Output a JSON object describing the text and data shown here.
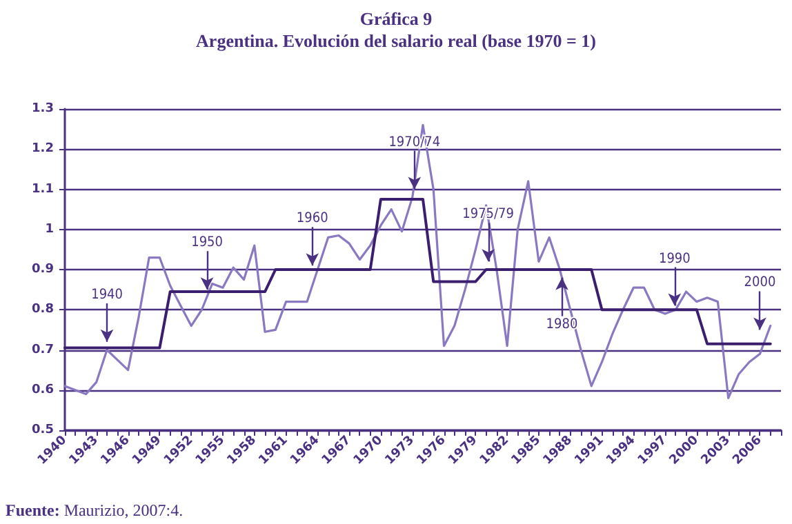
{
  "chart_data": {
    "type": "line",
    "title": "Gráfica 9",
    "subtitle": "Argentina. Evolución del salario real (base 1970 = 1)",
    "x": [
      1940,
      1941,
      1942,
      1943,
      1944,
      1945,
      1946,
      1947,
      1948,
      1949,
      1950,
      1951,
      1952,
      1953,
      1954,
      1955,
      1956,
      1957,
      1958,
      1959,
      1960,
      1961,
      1962,
      1963,
      1964,
      1965,
      1966,
      1967,
      1968,
      1969,
      1970,
      1971,
      1972,
      1973,
      1974,
      1975,
      1976,
      1977,
      1978,
      1979,
      1980,
      1981,
      1982,
      1983,
      1984,
      1985,
      1986,
      1987,
      1988,
      1989,
      1990,
      1991,
      1992,
      1993,
      1994,
      1995,
      1996,
      1997,
      1998,
      1999,
      2000,
      2001,
      2002,
      2003,
      2004,
      2005,
      2006,
      2007
    ],
    "series": [
      {
        "color": "#8a78c0",
        "values": [
          0.61,
          0.6,
          0.59,
          0.62,
          0.7,
          0.675,
          0.65,
          0.78,
          0.93,
          0.93,
          0.86,
          0.81,
          0.76,
          0.8,
          0.865,
          0.855,
          0.905,
          0.875,
          0.96,
          0.745,
          0.75,
          0.82,
          0.82,
          0.82,
          0.9,
          0.98,
          0.985,
          0.965,
          0.925,
          0.96,
          1.01,
          1.05,
          0.995,
          1.08,
          1.26,
          1.1,
          0.71,
          0.76,
          0.85,
          0.95,
          1.06,
          0.9,
          0.71,
          1.0,
          1.12,
          0.92,
          0.98,
          0.9,
          0.8,
          0.7,
          0.61,
          0.67,
          0.74,
          0.8,
          0.855,
          0.855,
          0.8,
          0.79,
          0.8,
          0.845,
          0.82,
          0.83,
          0.82,
          0.58,
          0.64,
          0.67,
          0.69,
          0.76
        ]
      },
      {
        "color": "#3b1e6e",
        "values": [
          0.705,
          0.705,
          0.705,
          0.705,
          0.705,
          0.705,
          0.705,
          0.705,
          0.705,
          0.705,
          0.845,
          0.845,
          0.845,
          0.845,
          0.845,
          0.845,
          0.845,
          0.845,
          0.845,
          0.845,
          0.9,
          0.9,
          0.9,
          0.9,
          0.9,
          0.9,
          0.9,
          0.9,
          0.9,
          0.9,
          1.075,
          1.075,
          1.075,
          1.075,
          1.075,
          0.87,
          0.87,
          0.87,
          0.87,
          0.87,
          0.9,
          0.9,
          0.9,
          0.9,
          0.9,
          0.9,
          0.9,
          0.9,
          0.9,
          0.9,
          0.9,
          0.8,
          0.8,
          0.8,
          0.8,
          0.8,
          0.8,
          0.8,
          0.8,
          0.8,
          0.8,
          0.715,
          0.715,
          0.715,
          0.715,
          0.715,
          0.715,
          0.715
        ]
      }
    ],
    "xlim": [
      1940,
      2008
    ],
    "xticks": [
      1940,
      {
        "value": 1941,
        "label": null
      },
      {
        "value": 1942,
        "label": null
      },
      1943,
      {
        "value": 1944,
        "label": null
      },
      {
        "value": 1945,
        "label": null
      },
      1946,
      {
        "value": 1947,
        "label": null
      },
      {
        "value": 1948,
        "label": null
      },
      1949,
      {
        "value": 1950,
        "label": null
      },
      {
        "value": 1951,
        "label": null
      },
      1952,
      {
        "value": 1953,
        "label": null
      },
      {
        "value": 1954,
        "label": null
      },
      1955,
      {
        "value": 1956,
        "label": null
      },
      {
        "value": 1957,
        "label": null
      },
      1958,
      {
        "value": 1959,
        "label": null
      },
      {
        "value": 1960,
        "label": null
      },
      1961,
      {
        "value": 1962,
        "label": null
      },
      {
        "value": 1963,
        "label": null
      },
      1964,
      {
        "value": 1965,
        "label": null
      },
      {
        "value": 1966,
        "label": null
      },
      1967,
      {
        "value": 1968,
        "label": null
      },
      {
        "value": 1969,
        "label": null
      },
      1970,
      {
        "value": 1971,
        "label": null
      },
      {
        "value": 1972,
        "label": null
      },
      1973,
      {
        "value": 1974,
        "label": null
      },
      {
        "value": 1975,
        "label": null
      },
      1976,
      {
        "value": 1977,
        "label": null
      },
      {
        "value": 1978,
        "label": null
      },
      1979,
      {
        "value": 1980,
        "label": null
      },
      {
        "value": 1981,
        "label": null
      },
      1982,
      {
        "value": 1983,
        "label": null
      },
      {
        "value": 1984,
        "label": null
      },
      1985,
      {
        "value": 1986,
        "label": null
      },
      {
        "value": 1987,
        "label": null
      },
      1988,
      {
        "value": 1989,
        "label": null
      },
      {
        "value": 1990,
        "label": null
      },
      1991,
      {
        "value": 1992,
        "label": null
      },
      {
        "value": 1993,
        "label": null
      },
      1994,
      {
        "value": 1995,
        "label": null
      },
      {
        "value": 1996,
        "label": null
      },
      1997,
      {
        "value": 1998,
        "label": null
      },
      {
        "value": 1999,
        "label": null
      },
      2000,
      {
        "value": 2001,
        "label": null
      },
      {
        "value": 2002,
        "label": null
      },
      2003,
      {
        "value": 2004,
        "label": null
      },
      {
        "value": 2005,
        "label": null
      },
      2006,
      {
        "value": 2007,
        "label": null
      },
      {
        "value": 2008,
        "label": null
      }
    ],
    "ylim": [
      0.5,
      1.3
    ],
    "yticks": [
      0.5,
      0.6,
      0.7,
      0.8,
      0.9,
      1,
      1.1,
      1.2,
      1.3
    ],
    "grid": "y",
    "marker": "none",
    "line_style": "solid",
    "annotations": [
      {
        "text": "1940",
        "x": 1944,
        "y": 0.72
      },
      {
        "text": "1950",
        "x": 1953.5,
        "y": 0.85
      },
      {
        "text": "1960",
        "x": 1963.5,
        "y": 0.91
      },
      {
        "text": "1970/74",
        "x": 1973.2,
        "y": 1.1
      },
      {
        "text": "1975/79",
        "x": 1980.2,
        "y": 0.92
      },
      {
        "text": "1980",
        "x": 1987.2,
        "y": 0.88
      },
      {
        "text": "1990",
        "x": 1997.9,
        "y": 0.81
      },
      {
        "text": "2000",
        "x": 2006,
        "y": 0.75
      },
      "Fuente: Maurizio, 2007:4."
    ]
  }
}
